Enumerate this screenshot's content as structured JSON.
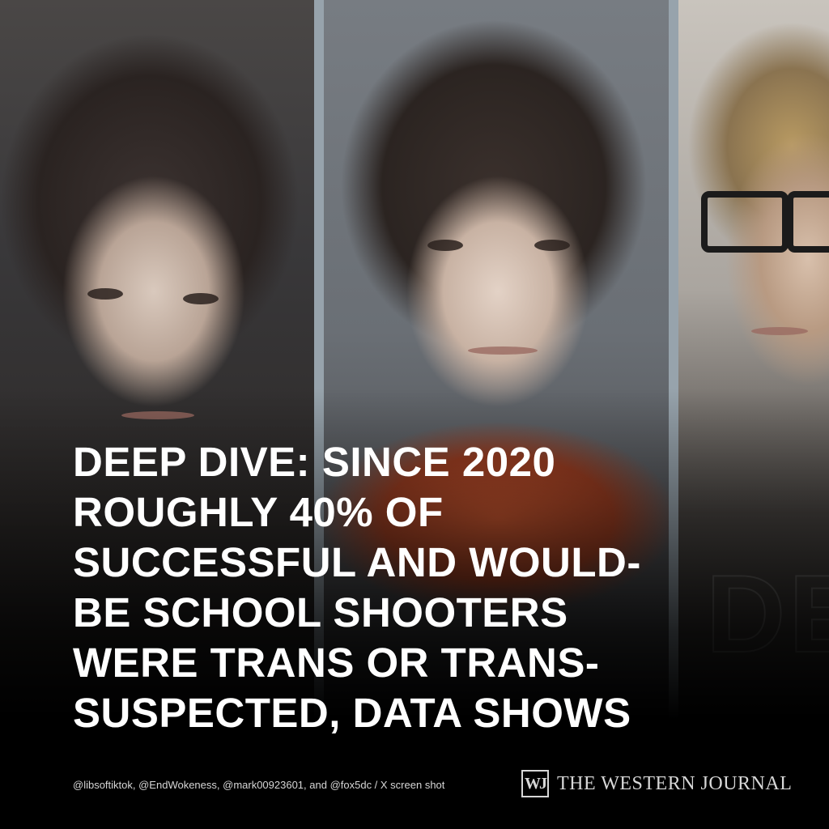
{
  "headline": {
    "lines": [
      "DEEP DIVE: SINCE 2020",
      "ROUGHLY 40% OF",
      "SUCCESSFUL AND WOULD-",
      "BE SCHOOL SHOOTERS",
      "WERE TRANS OR TRANS-",
      "SUSPECTED, DATA SHOWS"
    ]
  },
  "credit": "@libsoftiktok, @EndWokeness, @mark00923601, and @fox5dc / X screen shot",
  "brand": {
    "mark": "WJ",
    "name": "THE WESTERN JOURNAL"
  },
  "background_text": "DE",
  "colors": {
    "headline": "#ffffff",
    "divider": "#97a3ac",
    "brand": "#d7d7d7"
  }
}
